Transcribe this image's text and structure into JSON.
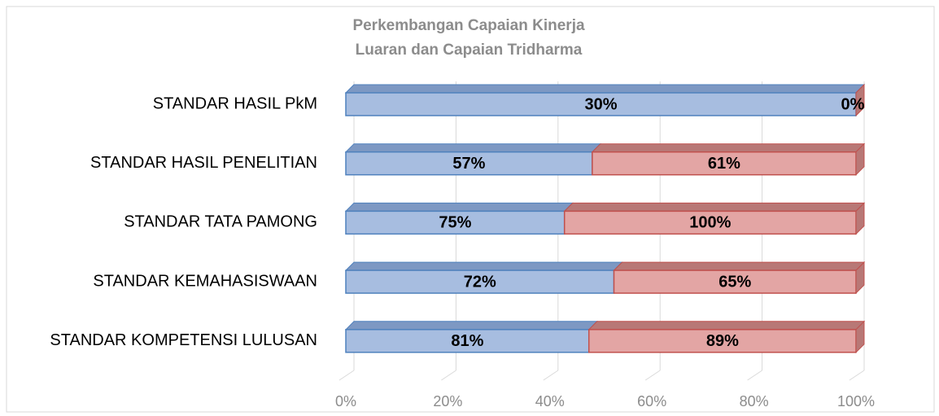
{
  "chart_data": {
    "type": "bar",
    "orientation": "horizontal",
    "stacking": "percent",
    "title_lines": [
      "Perkembangan Capaian Kinerja",
      "Luaran dan Capaian Tridharma"
    ],
    "categories": [
      "STANDAR HASIL PkM",
      "STANDAR HASIL PENELITIAN",
      "STANDAR TATA PAMONG",
      "STANDAR KEMAHASISWAAN",
      "STANDAR KOMPETENSI LULUSAN"
    ],
    "series": [
      {
        "color": "#a7bde0",
        "edge": "#4f81bd",
        "top": "#7d98c3",
        "values": [
          30,
          57,
          75,
          72,
          81
        ],
        "value_labels": [
          "30%",
          "57%",
          "75%",
          "72%",
          "81%"
        ]
      },
      {
        "color": "#e3a5a4",
        "edge": "#c0504d",
        "top": "#b87876",
        "values": [
          0,
          61,
          100,
          65,
          89
        ],
        "value_labels": [
          "0%",
          "61%",
          "100%",
          "65%",
          "89%"
        ]
      }
    ],
    "xlim": [
      0,
      100
    ],
    "xticks": [
      {
        "value": 0,
        "label": "0%"
      },
      {
        "value": 20,
        "label": "20%"
      },
      {
        "value": 40,
        "label": "40%"
      },
      {
        "value": 60,
        "label": "60%"
      },
      {
        "value": 80,
        "label": "80%"
      },
      {
        "value": 100,
        "label": "100%"
      }
    ],
    "grid": true
  }
}
